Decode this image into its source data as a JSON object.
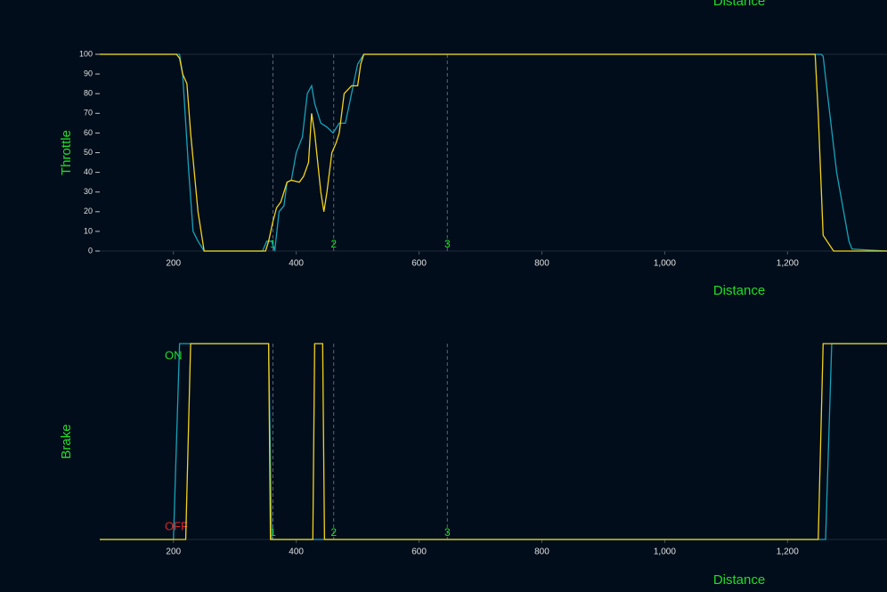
{
  "header_label": "Distance",
  "chart_data": [
    {
      "type": "line",
      "x_label": "Distance",
      "y_label": "Throttle",
      "xlim": [
        80,
        1362
      ],
      "ylim": [
        0,
        100
      ],
      "xticks": [
        200,
        400,
        600,
        800,
        {
          "value": 1000,
          "label": "1,000"
        },
        {
          "value": 1200,
          "label": "1,200"
        }
      ],
      "yticks": [
        0,
        10,
        20,
        30,
        40,
        50,
        60,
        70,
        80,
        90,
        100
      ],
      "annotations": [
        {
          "x": 362,
          "label": "1"
        },
        {
          "x": 461,
          "label": "2"
        },
        {
          "x": 646,
          "label": "3"
        }
      ],
      "series": [
        {
          "color": "#17a2b8",
          "x": [
            80,
            210,
            215,
            225,
            232,
            240,
            250,
            345,
            352,
            360,
            365,
            372,
            380,
            385,
            392,
            400,
            410,
            418,
            425,
            430,
            440,
            450,
            460,
            470,
            480,
            490,
            500,
            510,
            1255,
            1258,
            1265,
            1280,
            1300,
            1305,
            1362
          ],
          "values": [
            100,
            100,
            90,
            40,
            10,
            5,
            0,
            0,
            5,
            5,
            0,
            20,
            23,
            35,
            36,
            50,
            58,
            80,
            84,
            75,
            65,
            63,
            60,
            65,
            65,
            80,
            95,
            100,
            100,
            99,
            80,
            40,
            5,
            1,
            0
          ]
        },
        {
          "color": "#f2d31b",
          "x": [
            80,
            205,
            210,
            215,
            222,
            228,
            240,
            250,
            350,
            355,
            362,
            368,
            375,
            385,
            392,
            405,
            412,
            420,
            425,
            430,
            440,
            445,
            450,
            458,
            465,
            470,
            478,
            490,
            500,
            505,
            510,
            1245,
            1250,
            1258,
            1275,
            1362
          ],
          "values": [
            100,
            100,
            98,
            90,
            85,
            60,
            20,
            0,
            0,
            5,
            15,
            22,
            25,
            35,
            36,
            35,
            38,
            45,
            70,
            60,
            30,
            20,
            30,
            50,
            55,
            60,
            80,
            84,
            84,
            95,
            100,
            100,
            70,
            8,
            0,
            0
          ]
        }
      ]
    },
    {
      "type": "line",
      "x_label": "Distance",
      "y_label": "Brake",
      "xlim": [
        80,
        1362
      ],
      "ylim": [
        0,
        1
      ],
      "xticks": [
        200,
        400,
        600,
        800,
        {
          "value": 1000,
          "label": "1,000"
        },
        {
          "value": 1200,
          "label": "1,200"
        }
      ],
      "yticks": [
        {
          "value": 0,
          "label": "OFF",
          "color": "#d62728"
        },
        {
          "value": 1,
          "label": "ON",
          "color": "#22dd22"
        }
      ],
      "annotations": [
        {
          "x": 362,
          "label": "1"
        },
        {
          "x": 461,
          "label": "2"
        },
        {
          "x": 646,
          "label": "3"
        }
      ],
      "series": [
        {
          "color": "#17a2b8",
          "x": [
            80,
            200,
            210,
            355,
            360,
            1262,
            1272,
            1362
          ],
          "values": [
            0,
            0,
            1,
            1,
            0,
            0,
            1,
            1
          ]
        },
        {
          "color": "#f2d31b",
          "x": [
            80,
            220,
            228,
            355,
            358,
            427,
            430,
            443,
            446,
            1250,
            1258,
            1362
          ],
          "values": [
            0,
            0,
            1,
            1,
            0,
            0,
            1,
            1,
            0,
            0,
            1,
            1
          ]
        }
      ]
    }
  ]
}
